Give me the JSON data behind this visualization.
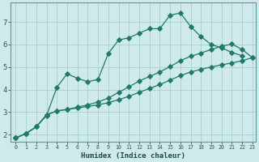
{
  "xlabel": "Humidex (Indice chaleur)",
  "ylabel": "",
  "bg_color": "#ceeaea",
  "grid_color": "#aacece",
  "line_color": "#1e7a6a",
  "xlim": [
    -0.5,
    23.3
  ],
  "ylim": [
    1.7,
    7.85
  ],
  "yticks": [
    2,
    3,
    4,
    5,
    6,
    7
  ],
  "xtick_labels": [
    "0",
    "1",
    "2",
    "3",
    "4",
    "5",
    "6",
    "7",
    "8",
    "9",
    "10",
    "11",
    "12",
    "13",
    "14",
    "15",
    "16",
    "17",
    "18",
    "19",
    "20",
    "21",
    "22",
    "23"
  ],
  "xtick_positions": [
    0,
    1,
    2,
    3,
    4,
    5,
    6,
    7,
    8,
    9,
    10,
    11,
    12,
    13,
    14,
    15,
    16,
    17,
    18,
    19,
    20,
    21,
    22,
    23
  ],
  "line1_x": [
    0,
    1,
    2,
    3,
    4,
    5,
    6,
    7,
    8,
    9,
    10,
    11,
    12,
    13,
    14,
    15,
    16,
    17,
    18,
    19,
    20,
    21,
    22
  ],
  "line1_y": [
    1.85,
    2.05,
    2.35,
    2.85,
    4.1,
    4.7,
    4.5,
    4.35,
    4.45,
    5.6,
    6.2,
    6.3,
    6.5,
    6.7,
    6.7,
    7.3,
    7.4,
    6.8,
    6.35,
    6.0,
    5.85,
    5.65,
    5.5
  ],
  "line2_x": [
    0,
    1,
    2,
    3,
    4,
    5,
    6,
    7,
    8,
    9,
    10,
    11,
    12,
    13,
    14,
    15,
    16,
    17,
    18,
    19,
    20,
    21,
    22,
    23
  ],
  "line2_y": [
    1.85,
    2.05,
    2.35,
    2.88,
    3.05,
    3.12,
    3.18,
    3.25,
    3.32,
    3.42,
    3.55,
    3.7,
    3.88,
    4.05,
    4.22,
    4.42,
    4.62,
    4.78,
    4.9,
    5.0,
    5.1,
    5.18,
    5.28,
    5.42
  ],
  "line3_x": [
    0,
    1,
    2,
    3,
    4,
    5,
    6,
    7,
    8,
    9,
    10,
    11,
    12,
    13,
    14,
    15,
    16,
    17,
    18,
    19,
    20,
    21,
    22,
    23
  ],
  "line3_y": [
    1.85,
    2.05,
    2.35,
    2.88,
    3.05,
    3.12,
    3.22,
    3.32,
    3.45,
    3.62,
    3.88,
    4.12,
    4.38,
    4.58,
    4.78,
    5.02,
    5.28,
    5.48,
    5.62,
    5.78,
    5.92,
    6.02,
    5.78,
    5.42
  ]
}
